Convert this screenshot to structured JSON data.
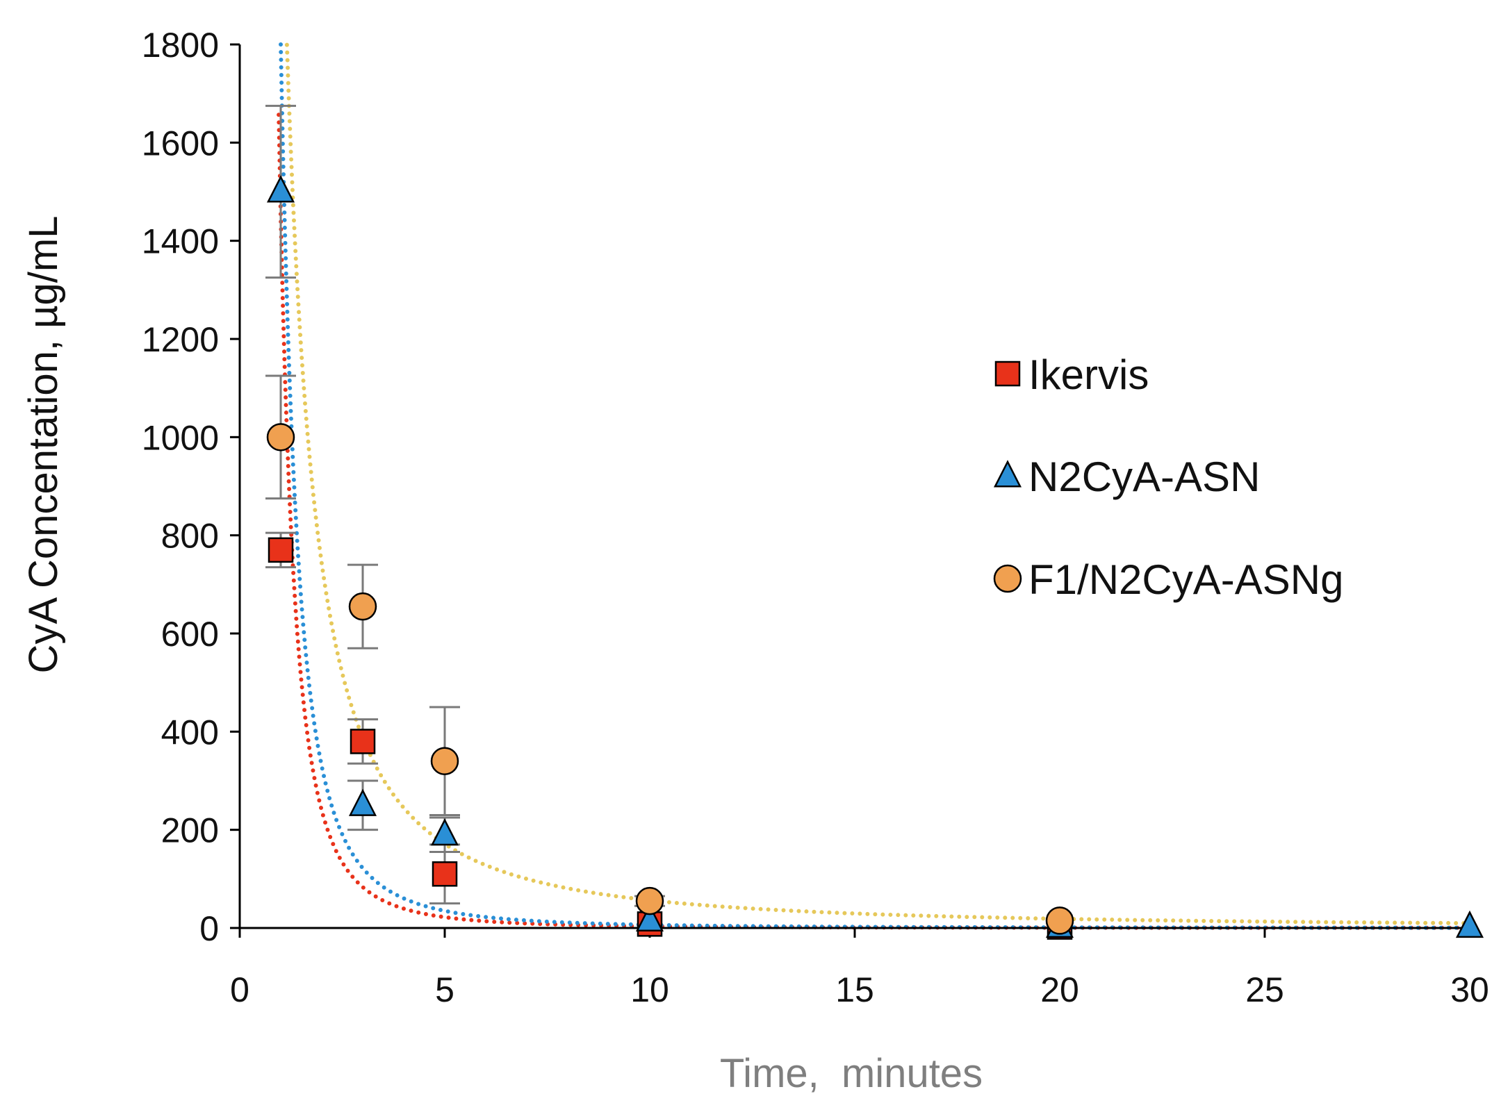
{
  "chart_data": {
    "type": "scatter",
    "title": "",
    "xlabel": "Time,  minutes",
    "ylabel": "CyA Concentation, µg/mL",
    "xlim": [
      0,
      30
    ],
    "ylim": [
      0,
      1800
    ],
    "xticks": [
      "0",
      "5",
      "10",
      "15",
      "20",
      "25",
      "30"
    ],
    "yticks": [
      "0",
      "200",
      "400",
      "600",
      "800",
      "1000",
      "1200",
      "1400",
      "1600",
      "1800"
    ],
    "grid": false,
    "legend_position": "right",
    "series": [
      {
        "name": "Ikervis",
        "marker": "square",
        "color": "#e8321a",
        "trend_color": "#e8321a",
        "x": [
          1,
          3,
          5,
          10,
          20
        ],
        "y": [
          770,
          380,
          110,
          8,
          2
        ],
        "error": [
          35,
          45,
          60,
          5,
          2
        ],
        "trend_power": {
          "a": 1450,
          "b": 2.6
        }
      },
      {
        "name": "N2CyA-ASN",
        "marker": "triangle",
        "color": "#2a8fd6",
        "trend_color": "#2a8fd6",
        "x": [
          1,
          3,
          5,
          10,
          20,
          30
        ],
        "y": [
          1500,
          250,
          190,
          15,
          2,
          2
        ],
        "error": [
          175,
          50,
          35,
          5,
          2,
          1
        ],
        "trend_power": {
          "a": 1800,
          "b": 2.45
        }
      },
      {
        "name": "F1/N2CyA-ASNg",
        "marker": "circle",
        "color": "#f0a050",
        "trend_color": "#e6c85a",
        "x": [
          1,
          3,
          5,
          10,
          20
        ],
        "y": [
          1000,
          655,
          340,
          55,
          15
        ],
        "error": [
          125,
          85,
          110,
          10,
          5
        ],
        "trend_power": {
          "a": 2250,
          "b": 1.6
        }
      }
    ]
  }
}
